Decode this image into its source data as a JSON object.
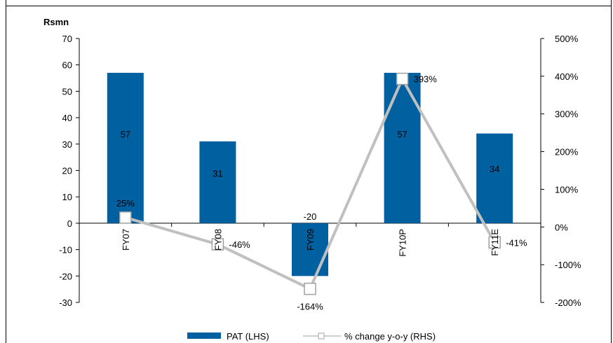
{
  "chart_data": {
    "type": "bar",
    "title": "",
    "ylabel_left": "Rsmn",
    "categories": [
      "FY07",
      "FY08",
      "FY09",
      "FY10P",
      "FY11E"
    ],
    "series": [
      {
        "name": "PAT (LHS)",
        "type": "bar",
        "axis": "left",
        "color": "#0060a0",
        "values": [
          57,
          31,
          -20,
          57,
          34
        ],
        "labels": [
          "57",
          "31",
          "-20",
          "57",
          "34"
        ]
      },
      {
        "name": "% change y-o-y (RHS)",
        "type": "line",
        "axis": "right",
        "color": "#c0c0c0",
        "values": [
          25,
          -46,
          -164,
          393,
          -41
        ],
        "labels": [
          "25%",
          "-46%",
          "-164%",
          "393%",
          "-41%"
        ]
      }
    ],
    "left_axis": {
      "min": -30,
      "max": 70,
      "step": 10,
      "ticks": [
        "70",
        "60",
        "50",
        "40",
        "30",
        "20",
        "10",
        "0",
        "-10",
        "-20",
        "-30"
      ]
    },
    "right_axis": {
      "min": -200,
      "max": 500,
      "step": 100,
      "ticks": [
        "500%",
        "400%",
        "300%",
        "200%",
        "100%",
        "0%",
        "-100%",
        "-200%"
      ]
    },
    "legend": {
      "position": "bottom",
      "items": [
        "PAT (LHS)",
        "% change y-o-y (RHS)"
      ]
    },
    "grid": false
  }
}
